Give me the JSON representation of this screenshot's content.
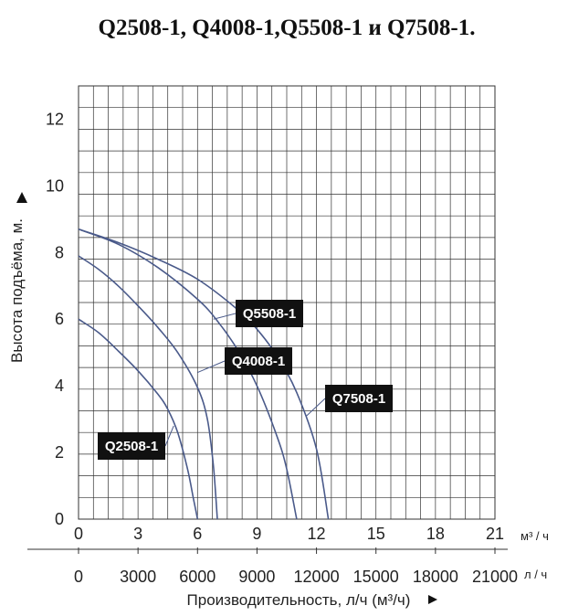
{
  "chart_data": {
    "type": "line",
    "title": "Q2508-1, Q4008-1,Q5508-1 и Q7508-1.",
    "ylabel": "Высота подъёма, м.",
    "xlabel": "Производительность, л/ч (м³/ч)",
    "x_unit_primary": "м³ / ч",
    "x_unit_secondary": "л / ч",
    "xlim": [
      0,
      21
    ],
    "ylim": [
      0,
      13
    ],
    "x_ticks": [
      "0",
      "3",
      "6",
      "9",
      "12",
      "15",
      "18",
      "21"
    ],
    "x_ticks_secondary": [
      "0",
      "3000",
      "6000",
      "9000",
      "12000",
      "15000",
      "18000",
      "21000"
    ],
    "y_ticks": [
      "0",
      "2",
      "4",
      "6",
      "8",
      "10",
      "12"
    ],
    "grid": true,
    "colors": {
      "curve": "#4a5a8a",
      "grid": "#333333",
      "callout": "#111111"
    },
    "series": [
      {
        "name": "Q2508-1",
        "x": [
          0,
          1,
          2,
          3,
          4,
          4.5,
          5,
          5.5,
          5.8,
          6.0
        ],
        "y": [
          6.0,
          5.6,
          5.05,
          4.45,
          3.75,
          3.3,
          2.6,
          1.5,
          0.6,
          0.0
        ]
      },
      {
        "name": "Q4008-1",
        "x": [
          0,
          1,
          2,
          3,
          4,
          5,
          6,
          6.5,
          6.8,
          7.0
        ],
        "y": [
          7.9,
          7.5,
          7.0,
          6.4,
          5.75,
          5.0,
          3.95,
          3.0,
          1.6,
          0.0
        ]
      },
      {
        "name": "Q5508-1",
        "x": [
          0,
          2,
          4,
          6,
          7,
          8,
          9,
          10,
          10.5,
          11.0
        ],
        "y": [
          8.7,
          8.25,
          7.55,
          6.6,
          5.95,
          5.1,
          4.0,
          2.5,
          1.5,
          0.0
        ]
      },
      {
        "name": "Q7508-1",
        "x": [
          0,
          2,
          4,
          6,
          8,
          9,
          10,
          11,
          12,
          12.6
        ],
        "y": [
          8.7,
          8.3,
          7.8,
          7.2,
          6.3,
          5.7,
          4.9,
          3.8,
          2.1,
          0.0
        ]
      }
    ],
    "callouts": [
      {
        "label": "Q5508-1",
        "points_to": {
          "x": 6.8,
          "y": 6.0
        }
      },
      {
        "label": "Q4008-1",
        "points_to": {
          "x": 6.0,
          "y": 4.4
        }
      },
      {
        "label": "Q7508-1",
        "points_to": {
          "x": 11.5,
          "y": 3.1
        }
      },
      {
        "label": "Q2508-1",
        "points_to": {
          "x": 4.8,
          "y": 2.8
        }
      }
    ]
  }
}
